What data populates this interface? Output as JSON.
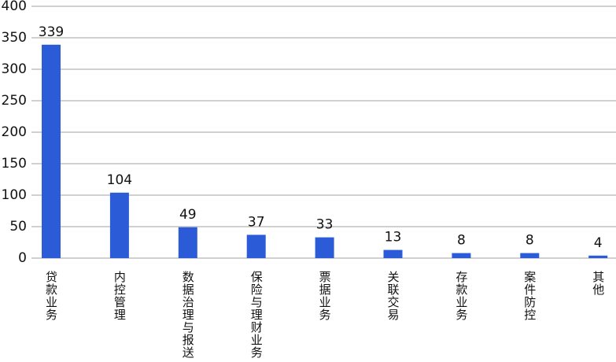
{
  "chart_data": {
    "type": "bar",
    "categories": [
      "贷款业务",
      "内控管理",
      "数据治理与报送",
      "保险与理财业务",
      "票据业务",
      "关联交易",
      "存款业务",
      "案件防控",
      "其他"
    ],
    "values": [
      339,
      104,
      49,
      37,
      33,
      13,
      8,
      8,
      4
    ],
    "color": "#2b5bd7",
    "ylim": [
      0,
      400
    ],
    "yticks": [
      0,
      50,
      100,
      150,
      200,
      250,
      300,
      350,
      400
    ],
    "grid": true
  }
}
